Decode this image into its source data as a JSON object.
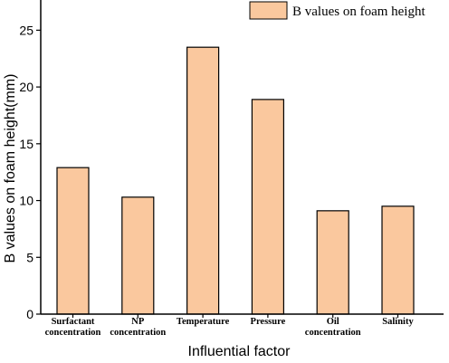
{
  "chart_data": {
    "type": "bar",
    "categories": [
      [
        "Surfactant",
        "concentration"
      ],
      [
        "NP",
        "concentration"
      ],
      [
        "Temperature"
      ],
      [
        "Pressure"
      ],
      [
        "Oil",
        "concentration"
      ],
      [
        "Salinity"
      ]
    ],
    "values": [
      12.9,
      10.3,
      23.5,
      18.9,
      9.1,
      9.5
    ],
    "series": [
      {
        "name": "B values on foam height",
        "values": [
          12.9,
          10.3,
          23.5,
          18.9,
          9.1,
          9.5
        ]
      }
    ],
    "xlabel": "Influential factor",
    "ylabel": "B values on foam height(mm)",
    "ylim": [
      0,
      27.5
    ],
    "yticks": [
      0,
      5,
      10,
      15,
      20,
      25
    ],
    "legend_position": "top-right",
    "grid": false,
    "colors": {
      "bar_fill": "#FAC89E",
      "bar_stroke": "#000000",
      "axis": "#000000"
    }
  }
}
